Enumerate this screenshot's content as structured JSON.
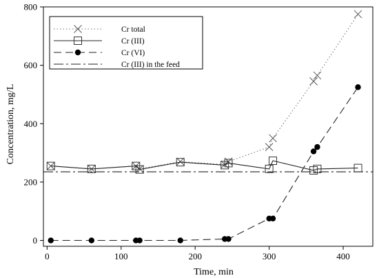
{
  "chart_data": {
    "type": "line",
    "xlabel": "Time, min",
    "ylabel": "Concentration, mg/L",
    "xlim": [
      -5,
      440
    ],
    "ylim": [
      -20,
      800
    ],
    "xticks": [
      0,
      100,
      200,
      300,
      400
    ],
    "yticks": [
      0,
      200,
      400,
      600,
      800
    ],
    "grid": false,
    "legend_position": "top-left",
    "series": [
      {
        "name": "Cr total",
        "marker": "x",
        "line": "dotted",
        "x": [
          5,
          60,
          120,
          125,
          180,
          240,
          245,
          300,
          305,
          360,
          365,
          420
        ],
        "y": [
          255,
          245,
          255,
          245,
          270,
          260,
          270,
          320,
          350,
          545,
          565,
          775
        ]
      },
      {
        "name": "Cr (III)",
        "marker": "square",
        "line": "solid",
        "x": [
          5,
          60,
          120,
          125,
          180,
          240,
          245,
          300,
          305,
          360,
          365,
          420
        ],
        "y": [
          255,
          245,
          255,
          243,
          268,
          258,
          265,
          245,
          273,
          240,
          245,
          248
        ]
      },
      {
        "name": "Cr (VI)",
        "marker": "circle",
        "line": "dashed",
        "x": [
          5,
          60,
          120,
          125,
          180,
          240,
          245,
          300,
          305,
          360,
          365,
          420
        ],
        "y": [
          0,
          0,
          0,
          0,
          0,
          5,
          5,
          75,
          75,
          305,
          320,
          525
        ]
      },
      {
        "name": "Cr (III) in the feed",
        "marker": "none",
        "line": "dash-dot",
        "constant": 235
      }
    ]
  }
}
